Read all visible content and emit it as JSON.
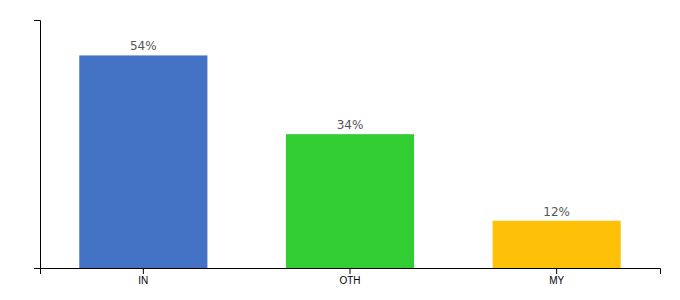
{
  "chart_data": {
    "type": "bar",
    "categories": [
      "IN",
      "OTH",
      "MY"
    ],
    "values": [
      54,
      34,
      12
    ],
    "value_labels": [
      "54%",
      "34%",
      "12%"
    ],
    "colors": [
      "#4472C4",
      "#32CD32",
      "#FFC107"
    ],
    "ylim": [
      0,
      63
    ],
    "grid": false,
    "data_labels": true,
    "tick_labels": "x"
  }
}
